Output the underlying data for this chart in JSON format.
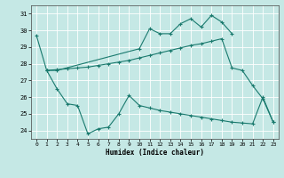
{
  "xlabel": "Humidex (Indice chaleur)",
  "bg_color": "#c5e8e5",
  "grid_color": "#ffffff",
  "line_color": "#1a7a6e",
  "xlim": [
    -0.5,
    23.5
  ],
  "ylim": [
    23.5,
    31.5
  ],
  "yticks": [
    24,
    25,
    26,
    27,
    28,
    29,
    30,
    31
  ],
  "xticks": [
    0,
    1,
    2,
    3,
    4,
    5,
    6,
    7,
    8,
    9,
    10,
    11,
    12,
    13,
    14,
    15,
    16,
    17,
    18,
    19,
    20,
    21,
    22,
    23
  ],
  "line1_x": [
    0,
    1,
    2,
    10,
    11,
    12,
    13,
    14,
    15,
    16,
    17,
    18,
    19
  ],
  "line1_y": [
    29.7,
    27.6,
    27.6,
    28.9,
    30.1,
    29.8,
    29.8,
    30.4,
    30.7,
    30.2,
    30.9,
    30.5,
    29.8
  ],
  "line2_x": [
    1,
    2,
    3,
    4,
    5,
    6,
    7,
    8,
    9,
    10,
    11,
    12,
    13,
    14,
    15,
    16,
    17,
    18,
    19,
    20,
    21,
    22,
    23
  ],
  "line2_y": [
    27.6,
    27.65,
    27.7,
    27.75,
    27.8,
    27.9,
    28.0,
    28.1,
    28.2,
    28.35,
    28.5,
    28.65,
    28.8,
    28.95,
    29.1,
    29.2,
    29.35,
    29.5,
    27.75,
    27.6,
    26.7,
    25.9,
    24.5
  ],
  "line3_x": [
    1,
    2,
    3,
    4,
    5,
    6,
    7,
    8,
    9,
    10,
    11,
    12,
    13,
    14,
    15,
    16,
    17,
    18,
    19,
    20,
    21,
    22,
    23
  ],
  "line3_y": [
    27.6,
    26.5,
    25.6,
    25.5,
    23.8,
    24.1,
    24.2,
    25.0,
    26.1,
    25.5,
    25.35,
    25.2,
    25.1,
    25.0,
    24.9,
    24.8,
    24.7,
    24.6,
    24.5,
    24.45,
    24.4,
    26.0,
    24.5
  ]
}
